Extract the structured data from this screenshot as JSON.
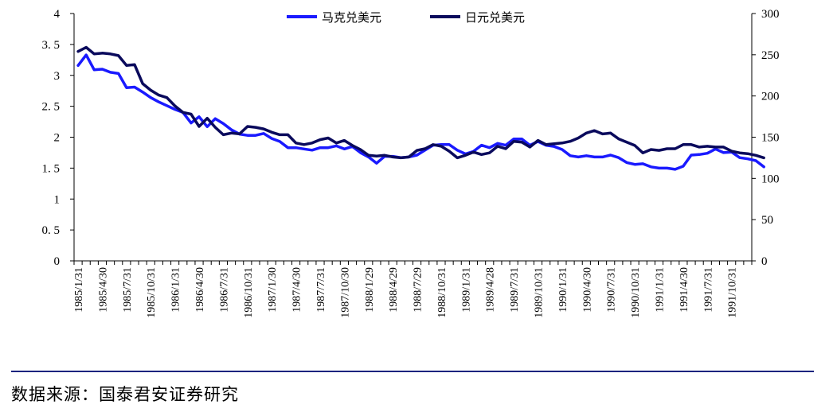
{
  "chart_data": {
    "type": "line",
    "title": "",
    "left_axis": {
      "ticks": [
        0,
        0.5,
        1,
        1.5,
        2,
        2.5,
        3,
        3.5,
        4
      ],
      "tick_labels": [
        "0",
        "0. 5",
        "1",
        "1. 5",
        "2",
        "2. 5",
        "3",
        "3. 5",
        "4"
      ],
      "ylim": [
        0,
        4
      ]
    },
    "right_axis": {
      "ticks": [
        0,
        50,
        100,
        150,
        200,
        250,
        300
      ],
      "tick_labels": [
        "0",
        "50",
        "100",
        "150",
        "200",
        "250",
        "300"
      ],
      "ylim": [
        0,
        300
      ]
    },
    "x_tick_labels": [
      "1985/1/31",
      "1985/4/30",
      "1985/7/31",
      "1985/10/31",
      "1986/1/31",
      "1986/4/30",
      "1986/7/31",
      "1986/10/31",
      "1987/1/30",
      "1987/4/30",
      "1987/7/31",
      "1987/10/30",
      "1988/1/29",
      "1988/4/29",
      "1988/7/29",
      "1988/10/31",
      "1989/1/31",
      "1989/4/28",
      "1989/7/31",
      "1989/10/31",
      "1990/1/31",
      "1990/4/30",
      "1990/7/31",
      "1990/10/31",
      "1991/1/31",
      "1991/4/30",
      "1991/7/31",
      "1991/10/31"
    ],
    "x_start": "1985-01",
    "x_end": "1991-12",
    "legend_position": "top-center",
    "grid": false,
    "series": [
      {
        "name": "马克兑美元",
        "axis": "left",
        "color": "#1a1aff",
        "values": [
          3.16,
          3.33,
          3.09,
          3.1,
          3.05,
          3.03,
          2.8,
          2.81,
          2.73,
          2.64,
          2.57,
          2.51,
          2.45,
          2.4,
          2.23,
          2.33,
          2.17,
          2.3,
          2.22,
          2.12,
          2.05,
          2.03,
          2.03,
          2.06,
          1.98,
          1.93,
          1.83,
          1.83,
          1.81,
          1.79,
          1.83,
          1.83,
          1.86,
          1.81,
          1.85,
          1.75,
          1.68,
          1.58,
          1.69,
          1.69,
          1.67,
          1.68,
          1.71,
          1.79,
          1.87,
          1.88,
          1.88,
          1.79,
          1.73,
          1.77,
          1.87,
          1.83,
          1.9,
          1.87,
          1.97,
          1.97,
          1.87,
          1.93,
          1.87,
          1.85,
          1.8,
          1.7,
          1.68,
          1.7,
          1.68,
          1.68,
          1.71,
          1.67,
          1.59,
          1.56,
          1.57,
          1.52,
          1.5,
          1.5,
          1.48,
          1.53,
          1.71,
          1.72,
          1.74,
          1.81,
          1.75,
          1.76,
          1.67,
          1.65,
          1.62,
          1.52
        ]
      },
      {
        "name": "日元兑美元",
        "axis": "right",
        "color": "#0a0a5c",
        "values": [
          254,
          259,
          251,
          252,
          251,
          249,
          237,
          238,
          215,
          207,
          201,
          198,
          188,
          180,
          178,
          163,
          173,
          162,
          153,
          155,
          154,
          163,
          162,
          160,
          156,
          153,
          153,
          143,
          141,
          143,
          147,
          149,
          143,
          146,
          140,
          135,
          128,
          127,
          128,
          126,
          125,
          126,
          134,
          136,
          141,
          139,
          133,
          125,
          128,
          132,
          129,
          131,
          139,
          136,
          145,
          144,
          138,
          146,
          141,
          142,
          143,
          145,
          149,
          155,
          158,
          154,
          155,
          148,
          144,
          140,
          131,
          135,
          134,
          136,
          136,
          141,
          141,
          138,
          139,
          138,
          138,
          133,
          131,
          130,
          128,
          125
        ]
      }
    ]
  },
  "source": "数据来源：国泰君安证券研究"
}
